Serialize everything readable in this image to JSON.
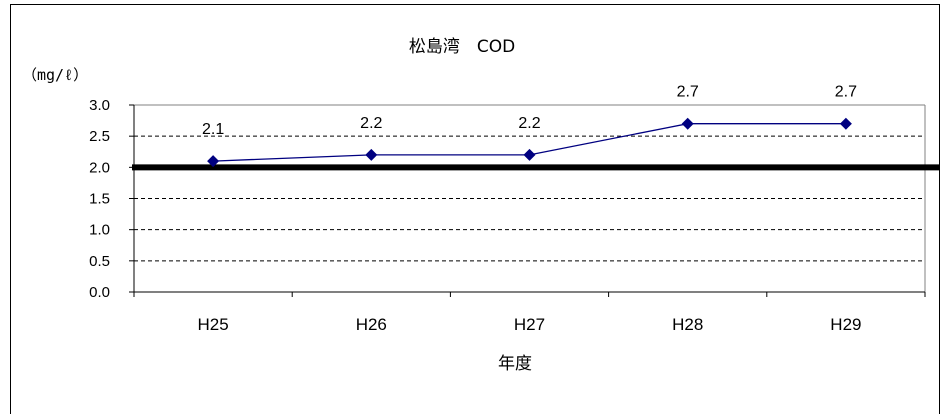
{
  "chart_data": {
    "type": "line",
    "title": "松島湾　COD",
    "ylabel": "（mg/ℓ）",
    "xlabel": "年度",
    "categories": [
      "H25",
      "H26",
      "H27",
      "H28",
      "H29"
    ],
    "series": [
      {
        "values": [
          2.1,
          2.2,
          2.2,
          2.7,
          2.7
        ],
        "color": "#000080"
      }
    ],
    "data_labels": [
      "2.1",
      "2.2",
      "2.2",
      "2.7",
      "2.7"
    ],
    "ylim": [
      0,
      3.0
    ],
    "yticks": [
      "0.0",
      "0.5",
      "1.0",
      "1.5",
      "2.0",
      "2.5",
      "3.0"
    ],
    "reference_line": {
      "value": 2.0,
      "color": "#000000"
    },
    "grid": "dashed horizontal",
    "legend": "none"
  }
}
